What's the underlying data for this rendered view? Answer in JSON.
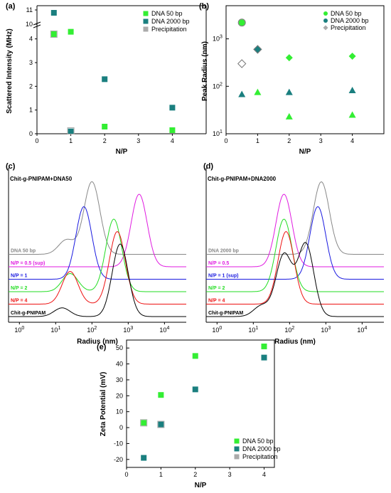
{
  "colors": {
    "dna50": "#33ee33",
    "dna2000": "#1a7f7f",
    "precip": "#aaaaaa",
    "precip_edge": "#777777"
  },
  "chart_data": [
    {
      "panel": "(a)",
      "type": "scatter",
      "xlabel": "N/P",
      "ylabel": "Scattered Intensity (MHz)",
      "xlim": [
        0,
        5
      ],
      "xticks": [
        "0",
        "1",
        "2",
        "3",
        "4"
      ],
      "yticks_lower": [
        "0",
        "1",
        "2",
        "3",
        "4"
      ],
      "yticks_upper": [
        "10",
        "11"
      ],
      "axis_break": "N/P",
      "series": [
        {
          "name": "DNA 50 bp",
          "color": "#33ee33",
          "marker": "square",
          "points": [
            {
              "x": 0.5,
              "y": 4.2
            },
            {
              "x": 1,
              "y": 4.3
            },
            {
              "x": 2,
              "y": 0.3
            },
            {
              "x": 4,
              "y": 0.15
            }
          ]
        },
        {
          "name": "DNA 2000 bp",
          "color": "#1a7f7f",
          "marker": "square",
          "points": [
            {
              "x": 0.5,
              "y": 10.8
            },
            {
              "x": 1,
              "y": 0.1
            },
            {
              "x": 2,
              "y": 2.3
            },
            {
              "x": 4,
              "y": 1.1
            }
          ]
        },
        {
          "name": "Precipitation",
          "color": "#aaaaaa",
          "marker": "square",
          "points": [
            {
              "x": 0.5,
              "y": 4.2
            },
            {
              "x": 1,
              "y": 0.12
            }
          ]
        }
      ]
    },
    {
      "panel": "(b)",
      "type": "scatter",
      "xlabel": "N/P",
      "ylabel": "Peak Radius (nm)",
      "yscale": "log",
      "xlim": [
        0,
        5
      ],
      "ylim": [
        10,
        5000
      ],
      "xticks": [
        "0",
        "1",
        "2",
        "3",
        "4"
      ],
      "yticks": [
        {
          "label": "10",
          "sup": "1"
        },
        {
          "label": "10",
          "sup": "2"
        },
        {
          "label": "10",
          "sup": "3"
        }
      ],
      "series": [
        {
          "name": "DNA 50 bp",
          "color": "#33ee33",
          "marker": "circle",
          "points": [
            {
              "x": 0.5,
              "y": 2200,
              "m": "circle"
            },
            {
              "x": 1,
              "y": 75,
              "m": "triangle"
            },
            {
              "x": 2,
              "y": 400,
              "m": "diamond"
            },
            {
              "x": 2,
              "y": 23,
              "m": "triangle"
            },
            {
              "x": 4,
              "y": 430,
              "m": "diamond"
            },
            {
              "x": 4,
              "y": 25,
              "m": "triangle"
            }
          ]
        },
        {
          "name": "DNA 2000 bp",
          "color": "#1a7f7f",
          "marker": "circle",
          "points": [
            {
              "x": 0.5,
              "y": 68,
              "m": "triangle"
            },
            {
              "x": 1,
              "y": 600,
              "m": "diamond"
            },
            {
              "x": 2,
              "y": 75,
              "m": "triangle"
            },
            {
              "x": 4,
              "y": 82,
              "m": "triangle"
            }
          ]
        },
        {
          "name": "Precipitation",
          "color": "#aaaaaa",
          "marker": "diamond",
          "points": [
            {
              "x": 0.5,
              "y": 2200,
              "m": "circle"
            },
            {
              "x": 0.5,
              "y": 300,
              "m": "diamond"
            },
            {
              "x": 1,
              "y": 600,
              "m": "diamond"
            }
          ]
        }
      ]
    },
    {
      "panel": "(c)",
      "type": "line",
      "title": "Chit-g-PNIPAM+DNA50",
      "xlabel": "Radius (nm)",
      "xscale": "log",
      "xticks": [
        {
          "label": "10",
          "sup": "0"
        },
        {
          "label": "10",
          "sup": "1"
        },
        {
          "label": "10",
          "sup": "2"
        },
        {
          "label": "10",
          "sup": "3"
        },
        {
          "label": "10",
          "sup": "4"
        }
      ],
      "series": [
        {
          "name": "DNA 50 bp",
          "color": "#888888",
          "peaks": [
            {
              "center_nm": 100,
              "height": 1.0
            },
            {
              "center_nm": 20,
              "height": 0.2
            }
          ]
        },
        {
          "name": "N/P = 0.5 (sup)",
          "color": "#e01be0",
          "peaks": [
            {
              "center_nm": 2000,
              "height": 1.0
            }
          ]
        },
        {
          "name": "N/P = 1",
          "color": "#1a1ae0",
          "peaks": [
            {
              "center_nm": 60,
              "height": 1.0
            }
          ]
        },
        {
          "name": "N/P = 2",
          "color": "#22dd22",
          "peaks": [
            {
              "center_nm": 400,
              "height": 1.0
            },
            {
              "center_nm": 25,
              "height": 0.25
            }
          ]
        },
        {
          "name": "N/P = 4",
          "color": "#ee1111",
          "peaks": [
            {
              "center_nm": 500,
              "height": 1.0
            },
            {
              "center_nm": 25,
              "height": 0.45
            }
          ]
        },
        {
          "name": "Chit-g-PNIPAM",
          "color": "#000000",
          "peaks": [
            {
              "center_nm": 600,
              "height": 1.0
            },
            {
              "center_nm": 15,
              "height": 0.12
            }
          ]
        }
      ]
    },
    {
      "panel": "(d)",
      "type": "line",
      "title": "Chit-g-PNIPAM+DNA2000",
      "xlabel": "Radius (nm)",
      "xscale": "log",
      "xticks": [
        {
          "label": "10",
          "sup": "0"
        },
        {
          "label": "10",
          "sup": "1"
        },
        {
          "label": "10",
          "sup": "2"
        },
        {
          "label": "10",
          "sup": "3"
        },
        {
          "label": "10",
          "sup": "4"
        }
      ],
      "series": [
        {
          "name": "DNA 2000 bp",
          "color": "#888888",
          "peaks": [
            {
              "center_nm": 750,
              "height": 1.0
            }
          ]
        },
        {
          "name": "N/P = 0.5",
          "color": "#e01be0",
          "peaks": [
            {
              "center_nm": 70,
              "height": 1.0
            }
          ]
        },
        {
          "name": "N/P = 1 (sup)",
          "color": "#1a1ae0",
          "peaks": [
            {
              "center_nm": 600,
              "height": 1.0
            }
          ]
        },
        {
          "name": "N/P = 2",
          "color": "#22dd22",
          "peaks": [
            {
              "center_nm": 70,
              "height": 1.0
            }
          ]
        },
        {
          "name": "N/P = 4",
          "color": "#ee1111",
          "peaks": [
            {
              "center_nm": 80,
              "height": 1.0
            }
          ]
        },
        {
          "name": "Chit-g-PNIPAM",
          "color": "#000000",
          "peaks": [
            {
              "center_nm": 280,
              "height": 1.0
            },
            {
              "center_nm": 70,
              "height": 0.85
            },
            {
              "center_nm": 17,
              "height": 0.15
            }
          ]
        }
      ]
    },
    {
      "panel": "(e)",
      "type": "scatter",
      "xlabel": "N/P",
      "ylabel": "Zeta Potential (mV)",
      "xlim": [
        0,
        4.3
      ],
      "ylim": [
        -25,
        55
      ],
      "xticks": [
        "0",
        "1",
        "2",
        "3",
        "4"
      ],
      "yticks": [
        "-20",
        "-10",
        "0",
        "10",
        "20",
        "30",
        "40",
        "50"
      ],
      "series": [
        {
          "name": "DNA 50 bp",
          "color": "#33ee33",
          "marker": "square",
          "points": [
            {
              "x": 0.5,
              "y": 3
            },
            {
              "x": 1,
              "y": 20.5
            },
            {
              "x": 2,
              "y": 45
            },
            {
              "x": 4,
              "y": 51
            }
          ]
        },
        {
          "name": "DNA 2000 bp",
          "color": "#1a7f7f",
          "marker": "square",
          "points": [
            {
              "x": 0.5,
              "y": -19
            },
            {
              "x": 1,
              "y": 2
            },
            {
              "x": 2,
              "y": 24
            },
            {
              "x": 4,
              "y": 44
            }
          ]
        },
        {
          "name": "Precipitation",
          "color": "#aaaaaa",
          "marker": "square",
          "points": [
            {
              "x": 0.5,
              "y": 3
            },
            {
              "x": 1,
              "y": 2
            }
          ]
        }
      ]
    }
  ]
}
